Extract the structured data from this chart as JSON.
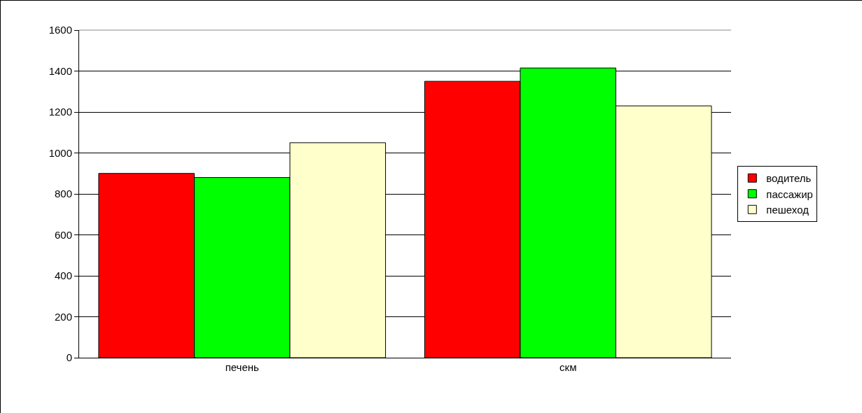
{
  "chart_data": {
    "type": "bar",
    "categories": [
      "печень",
      "скм"
    ],
    "series": [
      {
        "name": "водитель",
        "color": "#ff0000",
        "values": [
          900,
          1350
        ]
      },
      {
        "name": "пассажир",
        "color": "#00ff00",
        "values": [
          880,
          1415
        ]
      },
      {
        "name": "пешеход",
        "color": "#ffffcc",
        "values": [
          1050,
          1230
        ]
      }
    ],
    "ylim": [
      0,
      1600
    ],
    "yticks": [
      0,
      200,
      400,
      600,
      800,
      1000,
      1200,
      1400,
      1600
    ],
    "grid": "y",
    "legend": "right"
  }
}
